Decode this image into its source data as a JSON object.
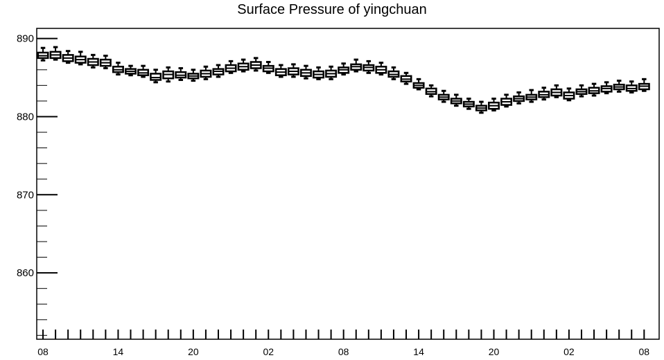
{
  "chart_data": {
    "type": "boxplot",
    "title": "Surface Pressure of yingchuan",
    "xlabel": "",
    "ylabel": "",
    "ylim": [
      851.5,
      891.3
    ],
    "y_ticks": [
      860,
      870,
      880,
      890
    ],
    "y_tick_labels": [
      "860",
      "870",
      "880",
      "890"
    ],
    "x_tick_labels": [
      "08",
      "14",
      "20",
      "02",
      "08",
      "14",
      "20",
      "02",
      "08"
    ],
    "x_tick_hours": [
      0,
      6,
      12,
      18,
      24,
      30,
      36,
      42,
      48
    ],
    "x_range_hours": [
      -0.5,
      49.2
    ],
    "box_width_hours": 0.8,
    "grid": false,
    "series": [
      {
        "boxes": [
          {
            "x": 0,
            "median": 887.8,
            "q1": 887.5,
            "q3": 888.2,
            "min": 887.2,
            "max": 888.8
          },
          {
            "x": 1,
            "median": 887.9,
            "q1": 887.5,
            "q3": 888.3,
            "min": 887.3,
            "max": 888.9
          },
          {
            "x": 2,
            "median": 887.5,
            "q1": 887.1,
            "q3": 887.9,
            "min": 886.9,
            "max": 888.4
          },
          {
            "x": 3,
            "median": 887.3,
            "q1": 886.9,
            "q3": 887.7,
            "min": 886.7,
            "max": 888.3
          },
          {
            "x": 4,
            "median": 887.0,
            "q1": 886.6,
            "q3": 887.4,
            "min": 886.3,
            "max": 887.9
          },
          {
            "x": 5,
            "median": 886.9,
            "q1": 886.5,
            "q3": 887.3,
            "min": 886.2,
            "max": 887.8
          },
          {
            "x": 6,
            "median": 886.0,
            "q1": 885.7,
            "q3": 886.4,
            "min": 885.4,
            "max": 886.9
          },
          {
            "x": 7,
            "median": 885.8,
            "q1": 885.5,
            "q3": 886.1,
            "min": 885.3,
            "max": 886.5
          },
          {
            "x": 8,
            "median": 885.6,
            "q1": 885.3,
            "q3": 886.0,
            "min": 885.1,
            "max": 886.5
          },
          {
            "x": 9,
            "median": 885.0,
            "q1": 884.7,
            "q3": 885.5,
            "min": 884.4,
            "max": 886.0
          },
          {
            "x": 10,
            "median": 885.4,
            "q1": 884.9,
            "q3": 885.8,
            "min": 884.5,
            "max": 886.3
          },
          {
            "x": 11,
            "median": 885.3,
            "q1": 885.0,
            "q3": 885.7,
            "min": 884.7,
            "max": 886.2
          },
          {
            "x": 12,
            "median": 885.2,
            "q1": 884.9,
            "q3": 885.5,
            "min": 884.6,
            "max": 886.0
          },
          {
            "x": 13,
            "median": 885.5,
            "q1": 885.1,
            "q3": 885.9,
            "min": 884.8,
            "max": 886.4
          },
          {
            "x": 14,
            "median": 885.8,
            "q1": 885.4,
            "q3": 886.1,
            "min": 885.1,
            "max": 886.6
          },
          {
            "x": 15,
            "median": 886.2,
            "q1": 885.8,
            "q3": 886.6,
            "min": 885.6,
            "max": 887.1
          },
          {
            "x": 16,
            "median": 886.4,
            "q1": 886.0,
            "q3": 886.8,
            "min": 885.8,
            "max": 887.3
          },
          {
            "x": 17,
            "median": 886.6,
            "q1": 886.2,
            "q3": 887.0,
            "min": 885.9,
            "max": 887.5
          },
          {
            "x": 18,
            "median": 886.2,
            "q1": 885.8,
            "q3": 886.5,
            "min": 885.6,
            "max": 887.0
          },
          {
            "x": 19,
            "median": 885.7,
            "q1": 885.3,
            "q3": 886.1,
            "min": 885.1,
            "max": 886.6
          },
          {
            "x": 20,
            "median": 885.8,
            "q1": 885.4,
            "q3": 886.2,
            "min": 885.1,
            "max": 886.7
          },
          {
            "x": 21,
            "median": 885.6,
            "q1": 885.2,
            "q3": 886.0,
            "min": 884.9,
            "max": 886.5
          },
          {
            "x": 22,
            "median": 885.4,
            "q1": 885.0,
            "q3": 885.8,
            "min": 884.8,
            "max": 886.3
          },
          {
            "x": 23,
            "median": 885.5,
            "q1": 885.1,
            "q3": 885.9,
            "min": 884.8,
            "max": 886.4
          },
          {
            "x": 24,
            "median": 886.0,
            "q1": 885.6,
            "q3": 886.3,
            "min": 885.4,
            "max": 886.8
          },
          {
            "x": 25,
            "median": 886.4,
            "q1": 886.0,
            "q3": 886.7,
            "min": 885.8,
            "max": 887.3
          },
          {
            "x": 26,
            "median": 886.3,
            "q1": 885.9,
            "q3": 886.6,
            "min": 885.6,
            "max": 887.1
          },
          {
            "x": 27,
            "median": 886.0,
            "q1": 885.6,
            "q3": 886.4,
            "min": 885.4,
            "max": 886.9
          },
          {
            "x": 28,
            "median": 885.4,
            "q1": 885.1,
            "q3": 885.8,
            "min": 884.8,
            "max": 886.3
          },
          {
            "x": 29,
            "median": 884.8,
            "q1": 884.5,
            "q3": 885.2,
            "min": 884.2,
            "max": 885.6
          },
          {
            "x": 30,
            "median": 884.0,
            "q1": 883.7,
            "q3": 884.3,
            "min": 883.5,
            "max": 884.8
          },
          {
            "x": 31,
            "median": 883.2,
            "q1": 882.9,
            "q3": 883.6,
            "min": 882.6,
            "max": 884.0
          },
          {
            "x": 32,
            "median": 882.5,
            "q1": 882.2,
            "q3": 882.8,
            "min": 881.9,
            "max": 883.3
          },
          {
            "x": 33,
            "median": 882.0,
            "q1": 881.7,
            "q3": 882.3,
            "min": 881.4,
            "max": 882.8
          },
          {
            "x": 34,
            "median": 881.6,
            "q1": 881.3,
            "q3": 881.9,
            "min": 881.0,
            "max": 882.3
          },
          {
            "x": 35,
            "median": 881.1,
            "q1": 880.8,
            "q3": 881.4,
            "min": 880.5,
            "max": 881.9
          },
          {
            "x": 36,
            "median": 881.4,
            "q1": 881.0,
            "q3": 881.8,
            "min": 880.8,
            "max": 882.3
          },
          {
            "x": 37,
            "median": 881.9,
            "q1": 881.5,
            "q3": 882.3,
            "min": 881.3,
            "max": 882.8
          },
          {
            "x": 38,
            "median": 882.3,
            "q1": 882.0,
            "q3": 882.6,
            "min": 881.7,
            "max": 883.1
          },
          {
            "x": 39,
            "median": 882.5,
            "q1": 882.2,
            "q3": 882.8,
            "min": 881.9,
            "max": 883.4
          },
          {
            "x": 40,
            "median": 882.8,
            "q1": 882.5,
            "q3": 883.2,
            "min": 882.2,
            "max": 883.7
          },
          {
            "x": 41,
            "median": 883.1,
            "q1": 882.7,
            "q3": 883.5,
            "min": 882.5,
            "max": 884.0
          },
          {
            "x": 42,
            "median": 882.7,
            "q1": 882.3,
            "q3": 883.1,
            "min": 882.1,
            "max": 883.6
          },
          {
            "x": 43,
            "median": 883.2,
            "q1": 882.9,
            "q3": 883.5,
            "min": 882.6,
            "max": 884.0
          },
          {
            "x": 44,
            "median": 883.3,
            "q1": 883.0,
            "q3": 883.7,
            "min": 882.7,
            "max": 884.2
          },
          {
            "x": 45,
            "median": 883.6,
            "q1": 883.2,
            "q3": 883.9,
            "min": 883.0,
            "max": 884.4
          },
          {
            "x": 46,
            "median": 883.8,
            "q1": 883.5,
            "q3": 884.1,
            "min": 883.2,
            "max": 884.6
          },
          {
            "x": 47,
            "median": 883.6,
            "q1": 883.3,
            "q3": 884.0,
            "min": 883.1,
            "max": 884.5
          },
          {
            "x": 48,
            "median": 883.9,
            "q1": 883.5,
            "q3": 884.2,
            "min": 883.3,
            "max": 884.8
          }
        ]
      }
    ],
    "colors": {
      "box_stroke": "#000000",
      "box_fill": "#ffffff",
      "axis": "#000000"
    }
  }
}
